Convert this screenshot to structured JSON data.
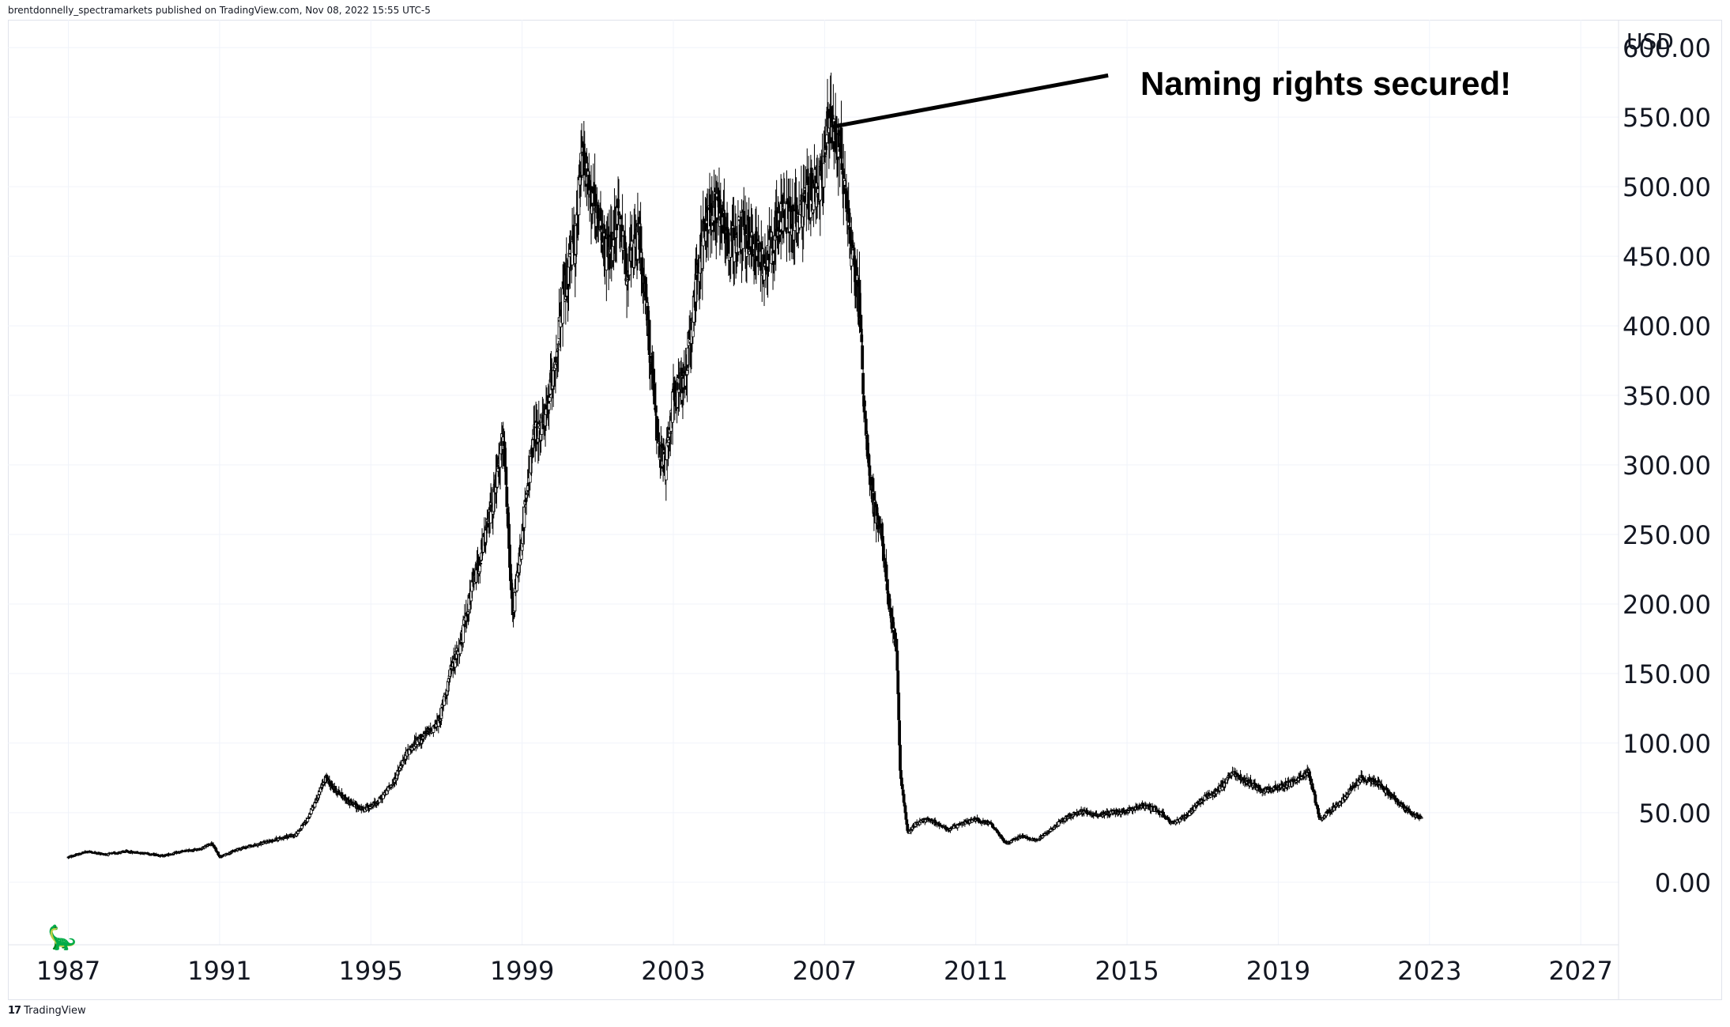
{
  "header": {
    "publish_text": "brentdonnelly_spectramarkets published on TradingView.com, Nov 08, 2022 15:55 UTC-5"
  },
  "footer": {
    "brand": "TradingView"
  },
  "annotation": {
    "text": "Naming rights secured!"
  },
  "chart_data": {
    "type": "candlestick",
    "currency_label": "USD",
    "y_ticks": [
      "600.00",
      "550.00",
      "500.00",
      "450.00",
      "400.00",
      "350.00",
      "300.00",
      "250.00",
      "200.00",
      "150.00",
      "100.00",
      "50.00",
      "0.00"
    ],
    "x_ticks": [
      "1987",
      "1991",
      "1995",
      "1999",
      "2003",
      "2007",
      "2011",
      "2015",
      "2019",
      "2023",
      "2027"
    ],
    "ylim": [
      -45,
      620
    ],
    "xlim": [
      1985.4,
      2028
    ],
    "grid": true,
    "price_path": [
      [
        1987.0,
        18
      ],
      [
        1987.5,
        22
      ],
      [
        1988.0,
        20
      ],
      [
        1988.5,
        22
      ],
      [
        1989.0,
        21
      ],
      [
        1989.5,
        19
      ],
      [
        1990.0,
        22
      ],
      [
        1990.5,
        24
      ],
      [
        1990.8,
        28
      ],
      [
        1991.0,
        18
      ],
      [
        1991.5,
        24
      ],
      [
        1992.0,
        27
      ],
      [
        1992.5,
        31
      ],
      [
        1993.0,
        34
      ],
      [
        1993.3,
        44
      ],
      [
        1993.6,
        62
      ],
      [
        1993.8,
        75
      ],
      [
        1994.0,
        68
      ],
      [
        1994.4,
        58
      ],
      [
        1994.8,
        52
      ],
      [
        1995.2,
        58
      ],
      [
        1995.6,
        72
      ],
      [
        1996.0,
        95
      ],
      [
        1996.4,
        105
      ],
      [
        1996.8,
        115
      ],
      [
        1997.1,
        150
      ],
      [
        1997.4,
        175
      ],
      [
        1997.7,
        215
      ],
      [
        1998.0,
        245
      ],
      [
        1998.3,
        285
      ],
      [
        1998.5,
        320
      ],
      [
        1998.75,
        190
      ],
      [
        1999.0,
        250
      ],
      [
        1999.3,
        320
      ],
      [
        1999.6,
        330
      ],
      [
        1999.9,
        380
      ],
      [
        2000.1,
        420
      ],
      [
        2000.4,
        460
      ],
      [
        2000.6,
        530
      ],
      [
        2000.8,
        495
      ],
      [
        2001.0,
        470
      ],
      [
        2001.3,
        450
      ],
      [
        2001.5,
        480
      ],
      [
        2001.8,
        440
      ],
      [
        2002.1,
        465
      ],
      [
        2002.4,
        380
      ],
      [
        2002.6,
        310
      ],
      [
        2002.8,
        300
      ],
      [
        2003.0,
        350
      ],
      [
        2003.3,
        360
      ],
      [
        2003.6,
        430
      ],
      [
        2003.9,
        480
      ],
      [
        2004.2,
        490
      ],
      [
        2004.5,
        455
      ],
      [
        2004.8,
        470
      ],
      [
        2005.1,
        460
      ],
      [
        2005.4,
        445
      ],
      [
        2005.7,
        470
      ],
      [
        2006.0,
        480
      ],
      [
        2006.3,
        475
      ],
      [
        2006.6,
        495
      ],
      [
        2006.9,
        500
      ],
      [
        2007.1,
        545
      ],
      [
        2007.3,
        540
      ],
      [
        2007.5,
        510
      ],
      [
        2007.7,
        460
      ],
      [
        2007.9,
        420
      ],
      [
        2008.1,
        320
      ],
      [
        2008.3,
        270
      ],
      [
        2008.5,
        250
      ],
      [
        2008.7,
        200
      ],
      [
        2008.9,
        170
      ],
      [
        2009.0,
        80
      ],
      [
        2009.2,
        35
      ],
      [
        2009.4,
        42
      ],
      [
        2009.7,
        45
      ],
      [
        2010.0,
        42
      ],
      [
        2010.3,
        38
      ],
      [
        2010.7,
        43
      ],
      [
        2011.0,
        45
      ],
      [
        2011.4,
        42
      ],
      [
        2011.8,
        28
      ],
      [
        2012.2,
        33
      ],
      [
        2012.6,
        30
      ],
      [
        2013.0,
        38
      ],
      [
        2013.4,
        47
      ],
      [
        2013.8,
        51
      ],
      [
        2014.2,
        48
      ],
      [
        2014.6,
        50
      ],
      [
        2015.0,
        51
      ],
      [
        2015.4,
        55
      ],
      [
        2015.8,
        52
      ],
      [
        2016.2,
        42
      ],
      [
        2016.6,
        48
      ],
      [
        2017.0,
        60
      ],
      [
        2017.4,
        66
      ],
      [
        2017.8,
        78
      ],
      [
        2018.2,
        72
      ],
      [
        2018.6,
        66
      ],
      [
        2019.0,
        68
      ],
      [
        2019.4,
        72
      ],
      [
        2019.8,
        80
      ],
      [
        2020.1,
        45
      ],
      [
        2020.4,
        52
      ],
      [
        2020.8,
        62
      ],
      [
        2021.2,
        75
      ],
      [
        2021.6,
        72
      ],
      [
        2022.0,
        62
      ],
      [
        2022.4,
        52
      ],
      [
        2022.8,
        45
      ]
    ],
    "annotation_arrow": {
      "from": [
        2007.2,
        543
      ],
      "to": [
        2014.5,
        580
      ]
    }
  }
}
